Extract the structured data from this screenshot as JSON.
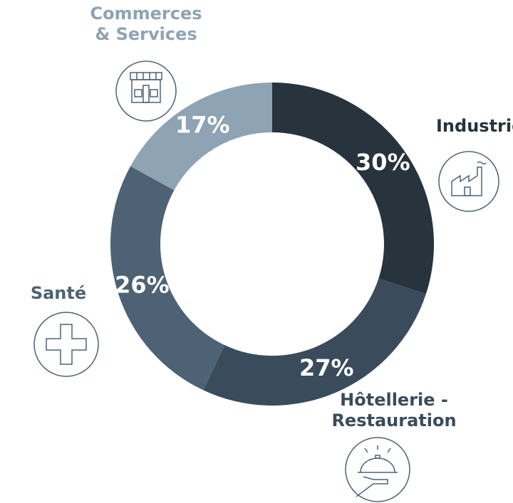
{
  "chart_data": {
    "type": "donut",
    "categories": [
      "Industrie",
      "Hôtellerie - Restauration",
      "Santé",
      "Commerces & Services"
    ],
    "values": [
      30,
      27,
      26,
      17
    ],
    "value_labels": [
      "30%",
      "27%",
      "26%",
      "17%"
    ],
    "colors": [
      "#27333d",
      "#3a4b5b",
      "#4d6275",
      "#8ea3b3"
    ]
  }
}
